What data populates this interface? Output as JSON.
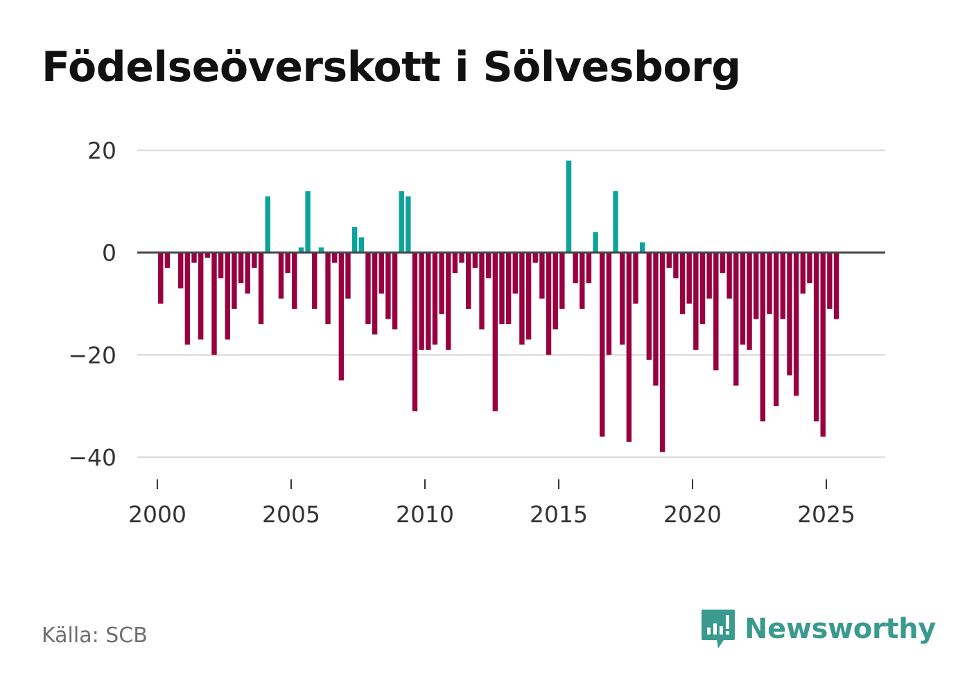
{
  "title": "Födelseöverskott i Sölvesborg",
  "source": "Källa: SCB",
  "brand": {
    "name": "Newsworthy",
    "icon": "bar-chart-bubble-icon",
    "color": "#3a9a8e"
  },
  "colors": {
    "positive": "#0ca39c",
    "negative": "#98003f",
    "grid": "#dddddd",
    "zero_line": "#444444",
    "tick_text": "#333333"
  },
  "chart_data": {
    "type": "bar",
    "title": "Födelseöverskott i Sölvesborg",
    "xlabel": "",
    "ylabel": "",
    "x_unit": "quarter",
    "first_period": {
      "year": 2000,
      "quarter": 1
    },
    "ylim": [
      -45,
      22
    ],
    "xlim": [
      1999.25,
      2027.2
    ],
    "y_ticks": [
      20,
      0,
      -20,
      -40
    ],
    "y_tick_labels": [
      "20",
      "0",
      "−20",
      "−40"
    ],
    "x_ticks": [
      2000,
      2005,
      2010,
      2015,
      2020,
      2025
    ],
    "x_tick_labels": [
      "2000",
      "2005",
      "2010",
      "2015",
      "2020",
      "2025"
    ],
    "grid": true,
    "values": [
      -10,
      -3,
      0,
      -7,
      -18,
      -2,
      -17,
      -1,
      -20,
      -5,
      -17,
      -11,
      -6,
      -8,
      -3,
      -14,
      11,
      0,
      -9,
      -4,
      -11,
      1,
      12,
      -11,
      1,
      -14,
      -2,
      -25,
      -9,
      5,
      3,
      -14,
      -16,
      -8,
      -13,
      -15,
      12,
      11,
      -31,
      -19,
      -19,
      -18,
      -12,
      -19,
      -4,
      -2,
      -11,
      -3,
      -15,
      -5,
      -31,
      -14,
      -14,
      -8,
      -18,
      -17,
      -2,
      -9,
      -20,
      -15,
      -11,
      18,
      -6,
      -11,
      -6,
      4,
      -36,
      -20,
      12,
      -18,
      -37,
      -10,
      2,
      -21,
      -26,
      -39,
      -3,
      -5,
      -12,
      -10,
      -19,
      -14,
      -9,
      -23,
      -4,
      -9,
      -26,
      -18,
      -19,
      -13,
      -33,
      -12,
      -30,
      -13,
      -24,
      -28,
      -8,
      -6,
      -33,
      -36,
      -11,
      -13
    ]
  }
}
